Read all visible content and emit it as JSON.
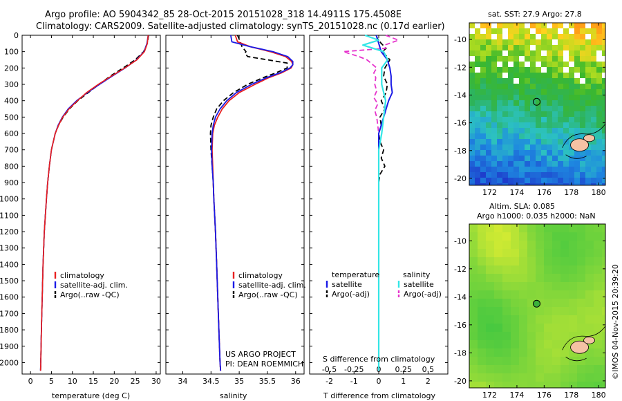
{
  "header": {
    "line1": "Argo profile: AO 5904342_85 28-Oct-2015 20151028_318 14.4911S 175.4508E",
    "line2": "Climatology: CARS2009. Satellite-adjusted climatology: synTS_20151028.nc (0.17d earlier)"
  },
  "colors": {
    "climatology": "#e82020",
    "satellite": "#1a1ae6",
    "argo": "#000000",
    "sal_satellite": "#33e6e6",
    "sal_argo": "#e633cc"
  },
  "chart_data": [
    {
      "id": "temperature",
      "type": "line",
      "xlabel": "temperature (deg C)",
      "ylabel": "",
      "xlim": [
        -2,
        31
      ],
      "ylim": [
        2070,
        0
      ],
      "xticks": [
        "0",
        "5",
        "10",
        "15",
        "20",
        "25",
        "30"
      ],
      "xtick_values": [
        0,
        5,
        10,
        15,
        20,
        25,
        30
      ],
      "yticks": [
        "0",
        "100",
        "200",
        "300",
        "400",
        "500",
        "600",
        "700",
        "800",
        "900",
        "1000",
        "1100",
        "1200",
        "1300",
        "1400",
        "1500",
        "1600",
        "1700",
        "1800",
        "1900",
        "2000"
      ],
      "ytick_values": [
        0,
        100,
        200,
        300,
        400,
        500,
        600,
        700,
        800,
        900,
        1000,
        1100,
        1200,
        1300,
        1400,
        1500,
        1600,
        1700,
        1800,
        1900,
        2000
      ],
      "legend": [
        "climatology",
        "satellite-adj. clim.",
        "Argo(..raw -QC)"
      ],
      "series": [
        {
          "name": "climatology",
          "depth": [
            0,
            50,
            100,
            150,
            200,
            250,
            300,
            350,
            400,
            450,
            500,
            550,
            600,
            700,
            800,
            900,
            1000,
            1200,
            1400,
            1600,
            1800,
            2000,
            2050
          ],
          "values": [
            28.1,
            27.9,
            27.2,
            25.4,
            22.5,
            19.3,
            16.2,
            13.4,
            11.2,
            9.2,
            7.7,
            6.7,
            5.9,
            5.0,
            4.5,
            4.1,
            3.8,
            3.3,
            3.0,
            2.8,
            2.6,
            2.45,
            2.4
          ]
        },
        {
          "name": "satellite-adj. clim.",
          "depth": [
            0,
            50,
            100,
            150,
            200,
            250,
            300,
            350,
            400,
            450,
            500,
            550,
            600,
            700,
            800,
            900,
            1000,
            1200,
            1400,
            1600,
            1800,
            2000,
            2050
          ],
          "values": [
            28.1,
            27.8,
            27.1,
            25.3,
            22.6,
            19.5,
            16.5,
            13.6,
            11.0,
            9.0,
            7.6,
            6.6,
            5.9,
            5.0,
            4.5,
            4.1,
            3.8,
            3.3,
            3.0,
            2.8,
            2.6,
            2.45,
            2.4
          ]
        },
        {
          "name": "Argo(..raw -QC)",
          "depth": [
            0,
            50,
            100,
            150,
            200,
            250,
            300,
            350,
            400,
            450,
            500,
            550,
            600,
            700,
            800,
            900,
            1000,
            1200,
            1400,
            1600,
            1800,
            2000,
            2050
          ],
          "values": [
            28.2,
            27.9,
            27.0,
            25.0,
            22.1,
            19.0,
            16.4,
            13.8,
            11.3,
            9.3,
            7.8,
            6.7,
            5.9,
            5.0,
            4.5,
            4.1,
            3.8,
            3.3,
            3.0,
            2.8,
            2.6,
            2.45,
            2.4
          ]
        }
      ]
    },
    {
      "id": "salinity",
      "type": "line",
      "xlabel": "salinity",
      "xlim": [
        33.7,
        36.15
      ],
      "ylim": [
        2070,
        0
      ],
      "xticks": [
        "34",
        "34.5",
        "35",
        "35.5",
        "36"
      ],
      "xtick_values": [
        34,
        34.5,
        35,
        35.5,
        36
      ],
      "legend": [
        "climatology",
        "satellite-adj. clim.",
        "Argo(..raw -QC)"
      ],
      "annotation": [
        "US ARGO PROJECT",
        "PI: DEAN ROEMMICH"
      ],
      "series": [
        {
          "name": "climatology",
          "depth": [
            0,
            40,
            70,
            100,
            130,
            160,
            180,
            200,
            230,
            260,
            300,
            350,
            400,
            450,
            500,
            550,
            600,
            700,
            800,
            900,
            1000,
            1200,
            1400,
            1600,
            1800,
            2000,
            2050
          ],
          "values": [
            34.93,
            34.97,
            35.2,
            35.55,
            35.82,
            35.93,
            35.95,
            35.92,
            35.75,
            35.52,
            35.28,
            35.0,
            34.82,
            34.7,
            34.62,
            34.56,
            34.53,
            34.52,
            34.53,
            34.54,
            34.55,
            34.58,
            34.6,
            34.62,
            34.64,
            34.66,
            34.67
          ]
        },
        {
          "name": "satellite-adj. clim.",
          "depth": [
            0,
            40,
            70,
            100,
            130,
            160,
            180,
            200,
            230,
            260,
            300,
            350,
            400,
            450,
            500,
            550,
            600,
            700,
            800,
            900,
            1000,
            1200,
            1400,
            1600,
            1800,
            2000,
            2050
          ],
          "values": [
            34.85,
            34.87,
            35.2,
            35.6,
            35.86,
            35.95,
            35.95,
            35.9,
            35.72,
            35.48,
            35.22,
            34.95,
            34.78,
            34.66,
            34.58,
            34.54,
            34.52,
            34.51,
            34.52,
            34.54,
            34.55,
            34.58,
            34.6,
            34.62,
            34.64,
            34.66,
            34.67
          ]
        },
        {
          "name": "Argo(..raw -QC)",
          "depth": [
            0,
            40,
            70,
            100,
            110,
            130,
            150,
            170,
            200,
            230,
            260,
            300,
            350,
            400,
            450,
            500,
            550,
            600,
            700,
            800,
            900,
            1000,
            1200,
            1400,
            1600,
            1800,
            2000,
            2050
          ],
          "values": [
            34.97,
            35.02,
            35.05,
            35.12,
            35.1,
            35.15,
            35.5,
            35.85,
            35.85,
            35.65,
            35.42,
            35.15,
            34.9,
            34.72,
            34.6,
            34.54,
            34.5,
            34.49,
            34.5,
            34.52,
            34.54,
            34.55,
            34.58,
            34.6,
            34.62,
            34.64,
            34.66,
            34.67
          ]
        }
      ]
    },
    {
      "id": "difference",
      "type": "line",
      "xlabel": "T difference from climatology",
      "xlabel_top": "S difference from climatology",
      "xlim": [
        -2.8,
        2.8
      ],
      "ylim": [
        2070,
        0
      ],
      "xticks": [
        "-2",
        "-1",
        "0",
        "1",
        "2"
      ],
      "xtick_values": [
        -2,
        -1,
        0,
        1,
        2
      ],
      "sticks": [
        "-0.5",
        "-0.25",
        "0",
        "0.25",
        "0.5"
      ],
      "stick_values": [
        -0.5,
        -0.25,
        0,
        0.25,
        0.5
      ],
      "legend_headings": [
        "temperature",
        "salinity"
      ],
      "legend": [
        "satellite",
        "Argo(-adj)",
        "satellite",
        "Argo(-adj)"
      ],
      "series": [
        {
          "name": "temperature satellite",
          "quantity": "T",
          "depth": [
            0,
            50,
            100,
            150,
            200,
            250,
            300,
            350,
            400,
            450,
            500,
            550,
            600,
            700,
            800,
            1000,
            1500,
            2050
          ],
          "values": [
            -0.1,
            0.0,
            0.1,
            0.35,
            0.45,
            0.5,
            0.5,
            0.55,
            0.4,
            0.3,
            0.2,
            0.1,
            0.0,
            0.0,
            0.0,
            0.0,
            0.0,
            0.0
          ]
        },
        {
          "name": "temperature Argo(-adj)",
          "quantity": "T",
          "depth": [
            0,
            20,
            50,
            80,
            100,
            150,
            200,
            250,
            300,
            350,
            400,
            450,
            500,
            550,
            600,
            650,
            700,
            750,
            800,
            850,
            900,
            1000,
            1200,
            1500,
            2050
          ],
          "values": [
            -0.1,
            -0.05,
            0.1,
            0.3,
            0.15,
            0.45,
            0.25,
            0.2,
            0.35,
            0.3,
            0.1,
            0.25,
            0.05,
            0.1,
            0.0,
            0.05,
            0.2,
            0.1,
            0.25,
            0.05,
            0.0,
            0.0,
            0.0,
            0.0,
            0.0
          ]
        },
        {
          "name": "salinity satellite",
          "quantity": "S",
          "depth": [
            0,
            30,
            60,
            100,
            150,
            200,
            300,
            400,
            500,
            600,
            700,
            800,
            1000,
            1500,
            2050
          ],
          "values": [
            -0.14,
            0.0,
            -0.16,
            0.05,
            0.09,
            0.03,
            0.03,
            0.07,
            0.05,
            0.03,
            0.0,
            0.0,
            0.0,
            0.0,
            0.0
          ]
        },
        {
          "name": "salinity Argo(-adj)",
          "quantity": "S",
          "depth": [
            0,
            30,
            60,
            80,
            100,
            130,
            150,
            170,
            200,
            230,
            260,
            300,
            340,
            380,
            420,
            460,
            500,
            550,
            600,
            700,
            800,
            1000,
            1500,
            2050
          ],
          "values": [
            0.07,
            0.2,
            0.06,
            0.07,
            -0.36,
            -0.2,
            -0.12,
            -0.08,
            -0.02,
            -0.05,
            -0.03,
            -0.04,
            -0.02,
            -0.05,
            -0.01,
            -0.04,
            -0.02,
            -0.01,
            0.0,
            0.0,
            0.0,
            0.0,
            0.0,
            0.0
          ]
        }
      ]
    },
    {
      "id": "sst_map",
      "type": "heatmap",
      "title": "sat. SST: 27.9 Argo: 27.8",
      "xlim": [
        170.5,
        180.5
      ],
      "ylim": [
        -20.5,
        -8.8
      ],
      "xticks": [
        "172",
        "174",
        "176",
        "178",
        "180"
      ],
      "xtick_values": [
        172,
        174,
        176,
        178,
        180
      ],
      "yticks": [
        "-10",
        "-12",
        "-14",
        "-16",
        "-18",
        "-20"
      ],
      "ytick_values": [
        -10,
        -12,
        -14,
        -16,
        -18,
        -20
      ],
      "marker": {
        "lon": 175.45,
        "lat": -14.49
      }
    },
    {
      "id": "sla_map",
      "type": "heatmap",
      "title": "Altim. SLA: 0.085",
      "subtitle": "Argo h1000: 0.035 h2000: NaN",
      "xlim": [
        170.5,
        180.5
      ],
      "ylim": [
        -20.5,
        -8.8
      ],
      "xticks": [
        "172",
        "174",
        "176",
        "178",
        "180"
      ],
      "xtick_values": [
        172,
        174,
        176,
        178,
        180
      ],
      "yticks": [
        "-10",
        "-12",
        "-14",
        "-16",
        "-18",
        "-20"
      ],
      "ytick_values": [
        -10,
        -12,
        -14,
        -16,
        -18,
        -20
      ],
      "marker": {
        "lon": 175.45,
        "lat": -14.49
      }
    }
  ],
  "footer": {
    "stamp": "©IMOS 04-Nov-2015 20:39:20"
  }
}
